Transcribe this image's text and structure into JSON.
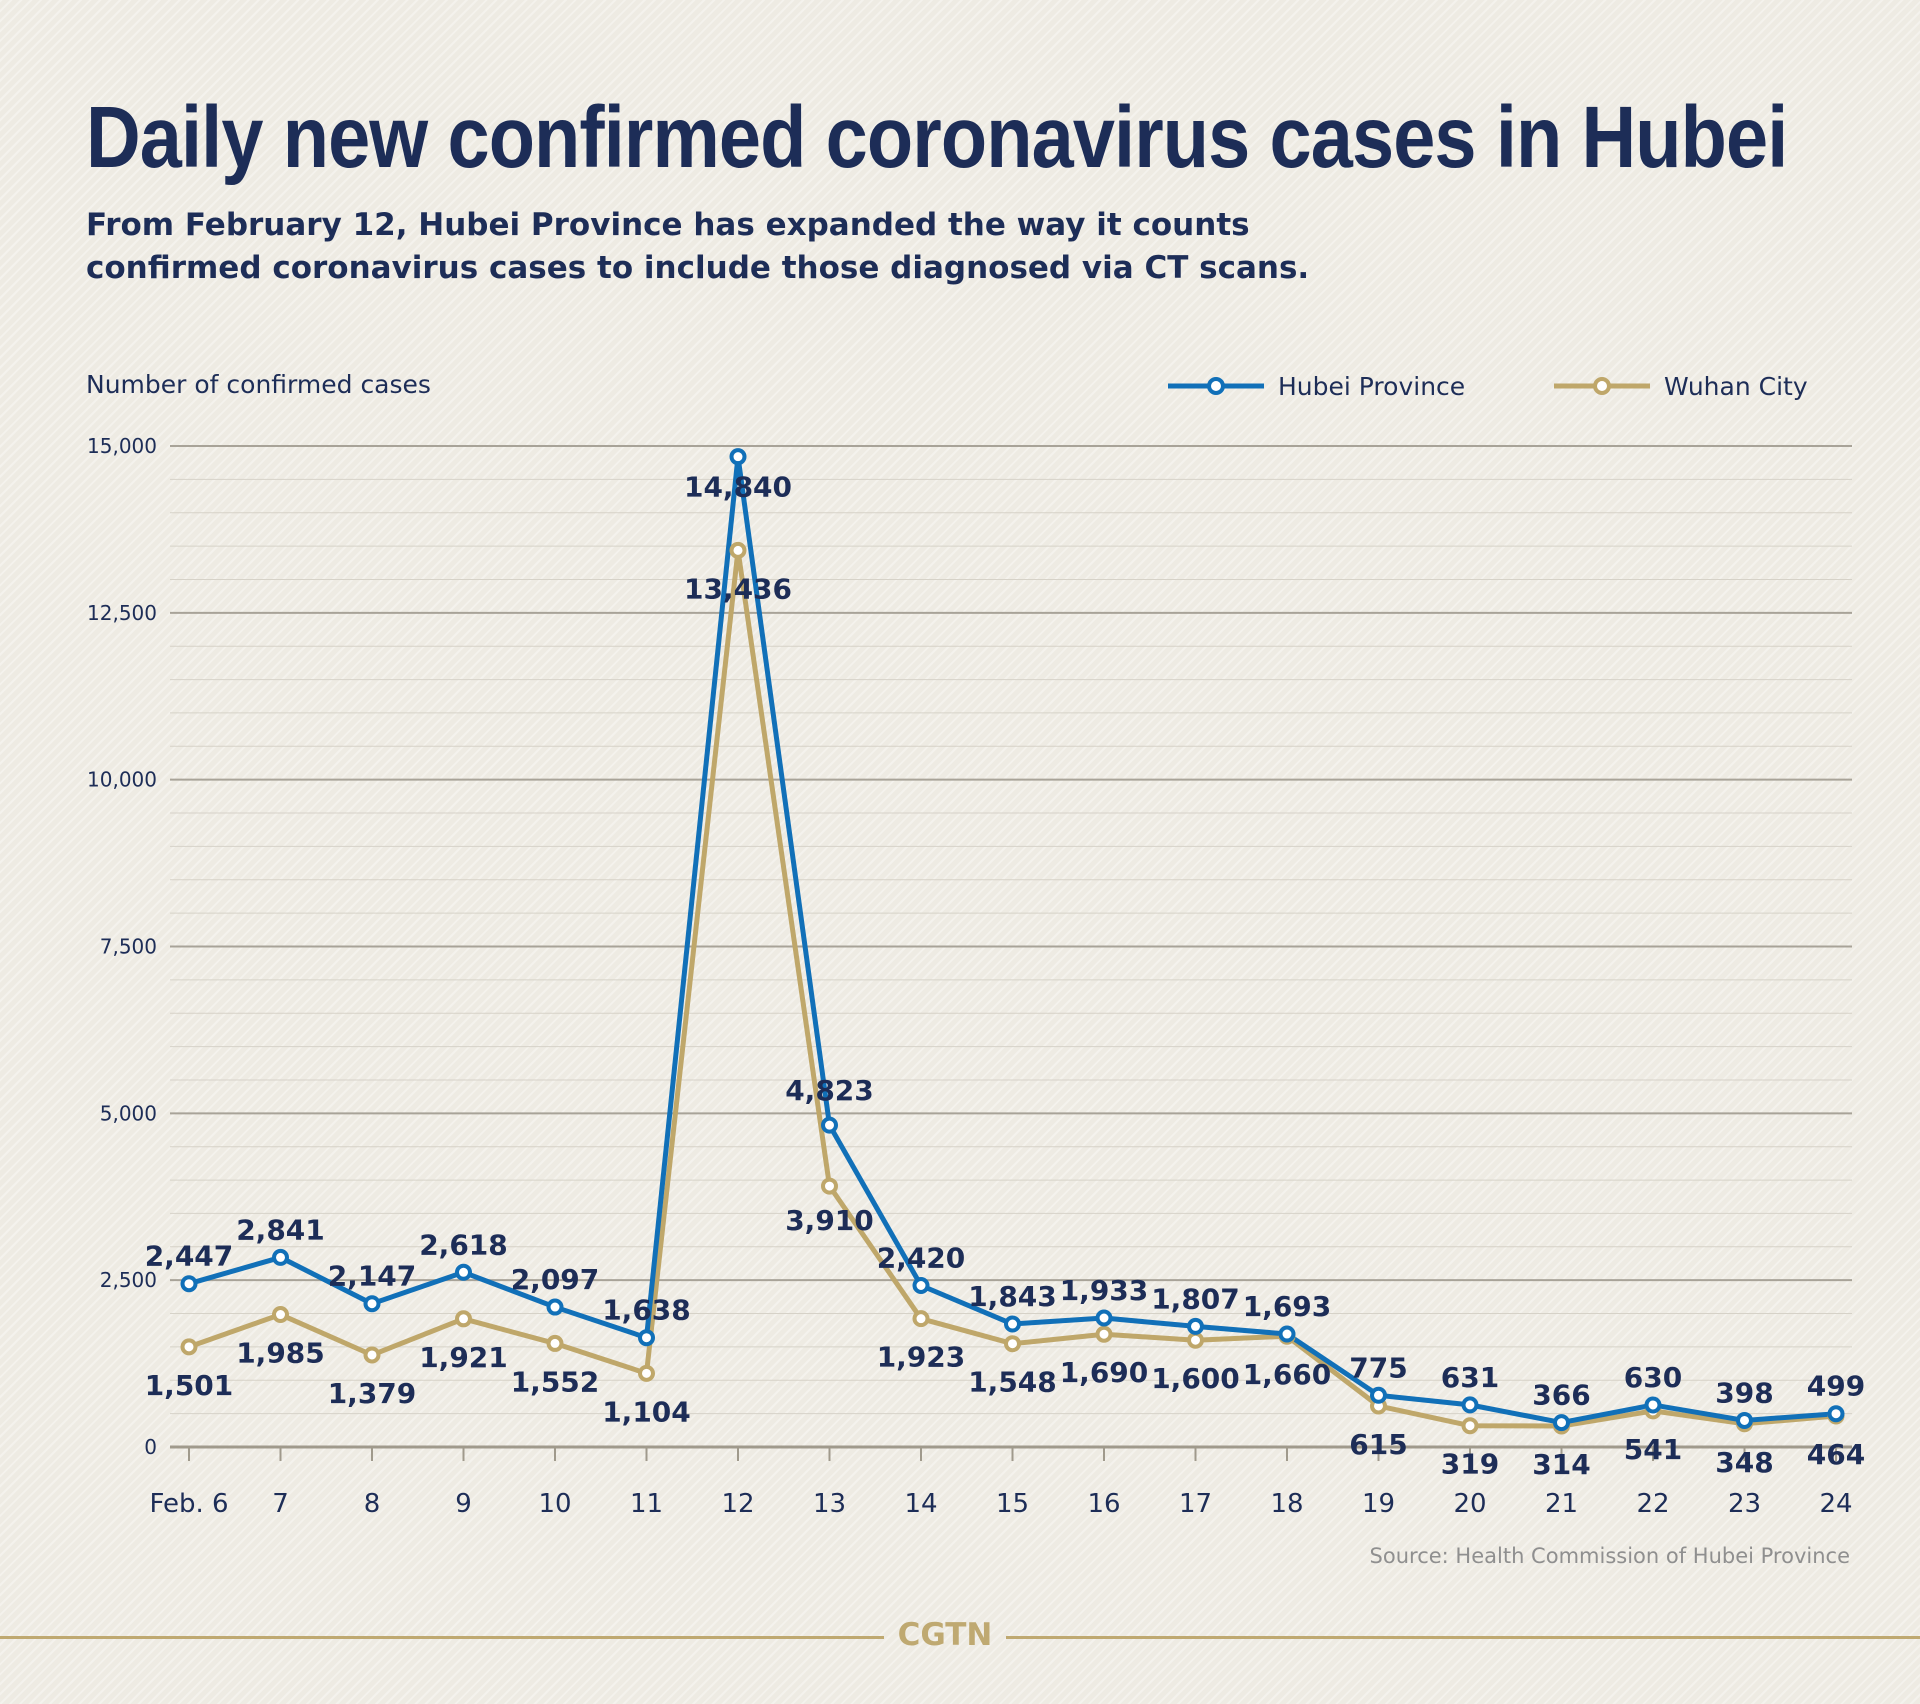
{
  "chart_data": {
    "type": "line",
    "title": "Daily new confirmed coronavirus cases in Hubei",
    "subtitle": [
      "From February 12, Hubei Province has expanded the way it counts",
      "confirmed coronavirus cases to include those diagnosed via CT scans."
    ],
    "ylabel": "Number of confirmed cases",
    "xlabel": "",
    "x": [
      "Feb. 6",
      "7",
      "8",
      "9",
      "10",
      "11",
      "12",
      "13",
      "14",
      "15",
      "16",
      "17",
      "18",
      "19",
      "20",
      "21",
      "22",
      "23",
      "24"
    ],
    "ylim": [
      0,
      15000
    ],
    "yticks": [
      0,
      2500,
      5000,
      7500,
      10000,
      12500,
      15000
    ],
    "ytick_labels": [
      "0",
      "2,500",
      "5,000",
      "7,500",
      "10,000",
      "12,500",
      "15,000"
    ],
    "grid": true,
    "legend_position": "top-right",
    "series": [
      {
        "name": "Hubei Province",
        "color": "#1170b8",
        "values": [
          2447,
          2841,
          2147,
          2618,
          2097,
          1638,
          14840,
          4823,
          2420,
          1843,
          1933,
          1807,
          1693,
          775,
          631,
          366,
          630,
          398,
          499
        ],
        "labels": [
          "2,447",
          "2,841",
          "2,147",
          "2,618",
          "2,097",
          "1,638",
          "14,840",
          "4,823",
          "2,420",
          "1,843",
          "1,933",
          "1,807",
          "1,693",
          "775",
          "631",
          "366",
          "630",
          "398",
          "499"
        ]
      },
      {
        "name": "Wuhan City",
        "color": "#bfa76a",
        "values": [
          1501,
          1985,
          1379,
          1921,
          1552,
          1104,
          13436,
          3910,
          1923,
          1548,
          1690,
          1600,
          1660,
          615,
          319,
          314,
          541,
          348,
          464
        ],
        "labels": [
          "1,501",
          "1,985",
          "1,379",
          "1,921",
          "1,552",
          "1,104",
          "13,436",
          "3,910",
          "1,923",
          "1,548",
          "1,690",
          "1,600",
          "1,660",
          "615",
          "319",
          "314",
          "541",
          "348",
          "464"
        ]
      }
    ],
    "source": "Source: Health Commission of Hubei Province",
    "brand": "CGTN"
  }
}
